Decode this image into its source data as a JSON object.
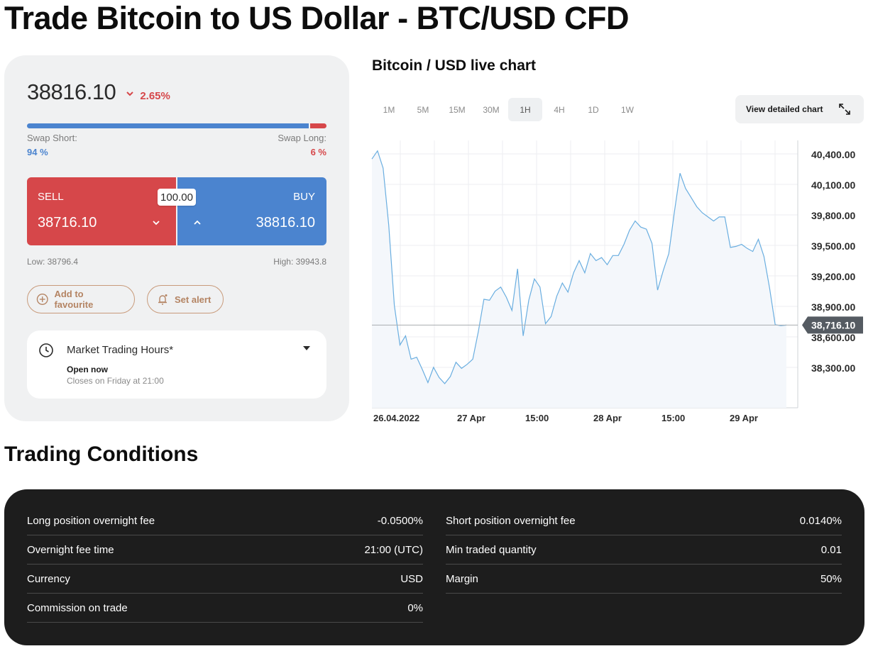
{
  "page": {
    "title": "Trade Bitcoin to US Dollar - BTC/USD CFD"
  },
  "trade": {
    "price": "38816.10",
    "change": "2.65%",
    "swap_short_label": "Swap Short:",
    "swap_short_value": "94 %",
    "swap_long_label": "Swap Long:",
    "swap_long_value": "6 %",
    "swap_short_fraction": 0.94,
    "sell_label": "SELL",
    "sell_price": "38716.10",
    "buy_label": "BUY",
    "buy_price": "38816.10",
    "spread": "100.00",
    "low": "Low: 38796.4",
    "high": "High: 39943.8",
    "favourite_label": "Add to favourite",
    "alert_label": "Set alert",
    "hours_title": "Market Trading Hours*",
    "hours_status": "Open now",
    "hours_closes": "Closes on Friday at 21:00",
    "colors": {
      "sell": "#d6474a",
      "buy": "#4b84cf",
      "accent": "#b48463"
    }
  },
  "chart_section": {
    "title": "Bitcoin / USD live chart",
    "timeframes": [
      "1M",
      "5M",
      "15M",
      "30M",
      "1H",
      "4H",
      "1D",
      "1W"
    ],
    "active_timeframe": "1H",
    "detail_label": "View detailed chart"
  },
  "chart_data": {
    "type": "area",
    "title": "Bitcoin / USD live chart",
    "y_ticks": [
      "40,400.00",
      "40,100.00",
      "39,800.00",
      "39,500.00",
      "39,200.00",
      "38,900.00",
      "38,600.00",
      "38,300.00"
    ],
    "y_tick_values": [
      40400,
      40100,
      39800,
      39500,
      39200,
      38900,
      38600,
      38300
    ],
    "x_ticks": [
      "26.04.2022",
      "27 Apr",
      "15:00",
      "28 Apr",
      "15:00",
      "29 Apr"
    ],
    "ylim": [
      38000,
      40500
    ],
    "current_price_label": "38,716.10",
    "current_price": 38716.1,
    "values": [
      40350,
      40430,
      40260,
      39700,
      38910,
      38520,
      38610,
      38380,
      38400,
      38280,
      38150,
      38300,
      38200,
      38140,
      38210,
      38350,
      38290,
      38330,
      38380,
      38650,
      38970,
      38960,
      39050,
      39090,
      38990,
      38860,
      39270,
      38610,
      38960,
      39170,
      39090,
      38730,
      38800,
      39000,
      39130,
      39040,
      39230,
      39350,
      39230,
      39420,
      39350,
      39380,
      39310,
      39400,
      39400,
      39510,
      39650,
      39740,
      39680,
      39660,
      39520,
      39060,
      39250,
      39420,
      39830,
      40210,
      40060,
      39970,
      39880,
      39820,
      39780,
      39740,
      39780,
      39780,
      39480,
      39490,
      39510,
      39470,
      39440,
      39560,
      39390,
      39080,
      38720,
      38710,
      38716
    ],
    "grid": true
  },
  "conditions": {
    "title": "Trading Conditions",
    "left": [
      {
        "label": "Long position overnight fee",
        "value": "-0.0500%"
      },
      {
        "label": "Overnight fee time",
        "value": "21:00 (UTC)"
      },
      {
        "label": "Currency",
        "value": "USD"
      },
      {
        "label": "Commission on trade",
        "value": "0%"
      }
    ],
    "right": [
      {
        "label": "Short position overnight fee",
        "value": "0.0140%"
      },
      {
        "label": "Min traded quantity",
        "value": "0.01"
      },
      {
        "label": "Margin",
        "value": "50%"
      }
    ]
  }
}
